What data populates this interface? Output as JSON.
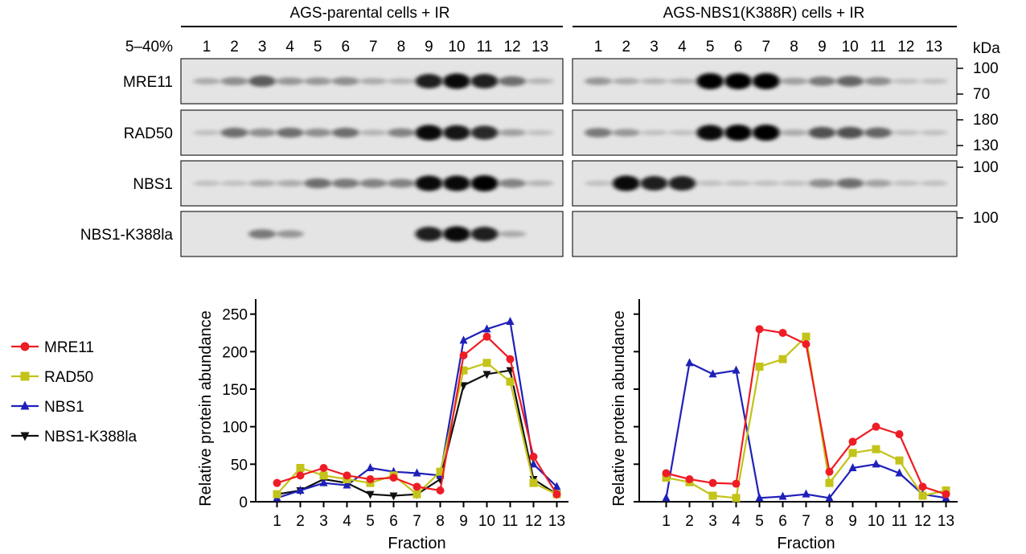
{
  "blot": {
    "left_header": "AGS-parental cells + IR",
    "right_header": "AGS-NBS1(K388R) cells + IR",
    "gradient_label": "5–40%",
    "fractions": [
      "1",
      "2",
      "3",
      "4",
      "5",
      "6",
      "7",
      "8",
      "9",
      "10",
      "11",
      "12",
      "13"
    ],
    "kda_label": "kDa",
    "rows": [
      {
        "label": "MRE11",
        "markers": [
          "100",
          "70"
        ],
        "left_intensity": [
          0.15,
          0.3,
          0.55,
          0.25,
          0.25,
          0.3,
          0.15,
          0.1,
          0.85,
          0.95,
          0.85,
          0.45,
          0.1
        ],
        "right_intensity": [
          0.25,
          0.15,
          0.1,
          0.1,
          1.0,
          1.0,
          1.0,
          0.2,
          0.4,
          0.5,
          0.3,
          0.05,
          0.05
        ]
      },
      {
        "label": "RAD50",
        "markers": [
          "180",
          "130"
        ],
        "left_intensity": [
          0.05,
          0.45,
          0.3,
          0.45,
          0.3,
          0.45,
          0.1,
          0.35,
          0.95,
          0.9,
          0.8,
          0.2,
          0.05
        ],
        "right_intensity": [
          0.4,
          0.25,
          0.05,
          0.05,
          0.95,
          1.0,
          1.0,
          0.15,
          0.6,
          0.6,
          0.5,
          0.05,
          0.05
        ]
      },
      {
        "label": "NBS1",
        "markers": [
          "100"
        ],
        "left_intensity": [
          0.05,
          0.05,
          0.15,
          0.15,
          0.45,
          0.4,
          0.35,
          0.35,
          0.95,
          0.95,
          1.0,
          0.35,
          0.1
        ],
        "right_intensity": [
          0.05,
          0.95,
          0.85,
          0.85,
          0.05,
          0.05,
          0.05,
          0.05,
          0.3,
          0.45,
          0.2,
          0.05,
          0.05
        ]
      },
      {
        "label": "NBS1-K388la",
        "markers": [
          "100"
        ],
        "left_intensity": [
          0,
          0,
          0.4,
          0.25,
          0,
          0,
          0,
          0,
          0.85,
          0.95,
          0.85,
          0.15,
          0
        ],
        "right_intensity": [
          0,
          0,
          0,
          0,
          0,
          0,
          0,
          0,
          0,
          0,
          0,
          0,
          0
        ]
      }
    ]
  },
  "legend": [
    {
      "name": "MRE11",
      "color": "#ee1c24",
      "marker": "circle"
    },
    {
      "name": "RAD50",
      "color": "#c3c319",
      "marker": "square"
    },
    {
      "name": "NBS1",
      "color": "#1f20b9",
      "marker": "triangle-up"
    },
    {
      "name": "NBS1-K388la",
      "color": "#111111",
      "marker": "triangle-down"
    }
  ],
  "chart_data": [
    {
      "type": "line",
      "xlabel": "Fraction",
      "ylabel": "Relative protein abundance",
      "x": [
        1,
        2,
        3,
        4,
        5,
        6,
        7,
        8,
        9,
        10,
        11,
        12,
        13
      ],
      "ylim": [
        0,
        270
      ],
      "yticks": [
        "0",
        "50",
        "100",
        "150",
        "200",
        "250"
      ],
      "series": [
        {
          "name": "MRE11",
          "values": [
            25,
            35,
            45,
            35,
            30,
            32,
            20,
            15,
            195,
            220,
            190,
            60,
            10
          ]
        },
        {
          "name": "RAD50",
          "values": [
            10,
            45,
            35,
            30,
            25,
            35,
            10,
            40,
            175,
            185,
            160,
            25,
            10
          ]
        },
        {
          "name": "NBS1",
          "values": [
            5,
            15,
            25,
            22,
            45,
            40,
            38,
            35,
            215,
            230,
            240,
            50,
            20
          ]
        },
        {
          "name": "NBS1-K388la",
          "values": [
            10,
            15,
            30,
            25,
            10,
            8,
            10,
            30,
            155,
            170,
            175,
            30,
            10
          ]
        }
      ]
    },
    {
      "type": "line",
      "xlabel": "Fraction",
      "ylabel": "Relative protein abundance",
      "x": [
        1,
        2,
        3,
        4,
        5,
        6,
        7,
        8,
        9,
        10,
        11,
        12,
        13
      ],
      "ylim": [
        0,
        270
      ],
      "yticks": [
        "",
        "",
        "",
        "",
        "",
        ""
      ],
      "series": [
        {
          "name": "MRE11",
          "values": [
            38,
            30,
            25,
            24,
            230,
            225,
            210,
            40,
            80,
            100,
            90,
            20,
            10
          ]
        },
        {
          "name": "RAD50",
          "values": [
            32,
            26,
            8,
            5,
            180,
            190,
            220,
            25,
            65,
            70,
            55,
            8,
            15
          ]
        },
        {
          "name": "NBS1",
          "values": [
            5,
            185,
            170,
            175,
            5,
            7,
            10,
            5,
            45,
            50,
            38,
            10,
            5
          ]
        }
      ]
    }
  ]
}
